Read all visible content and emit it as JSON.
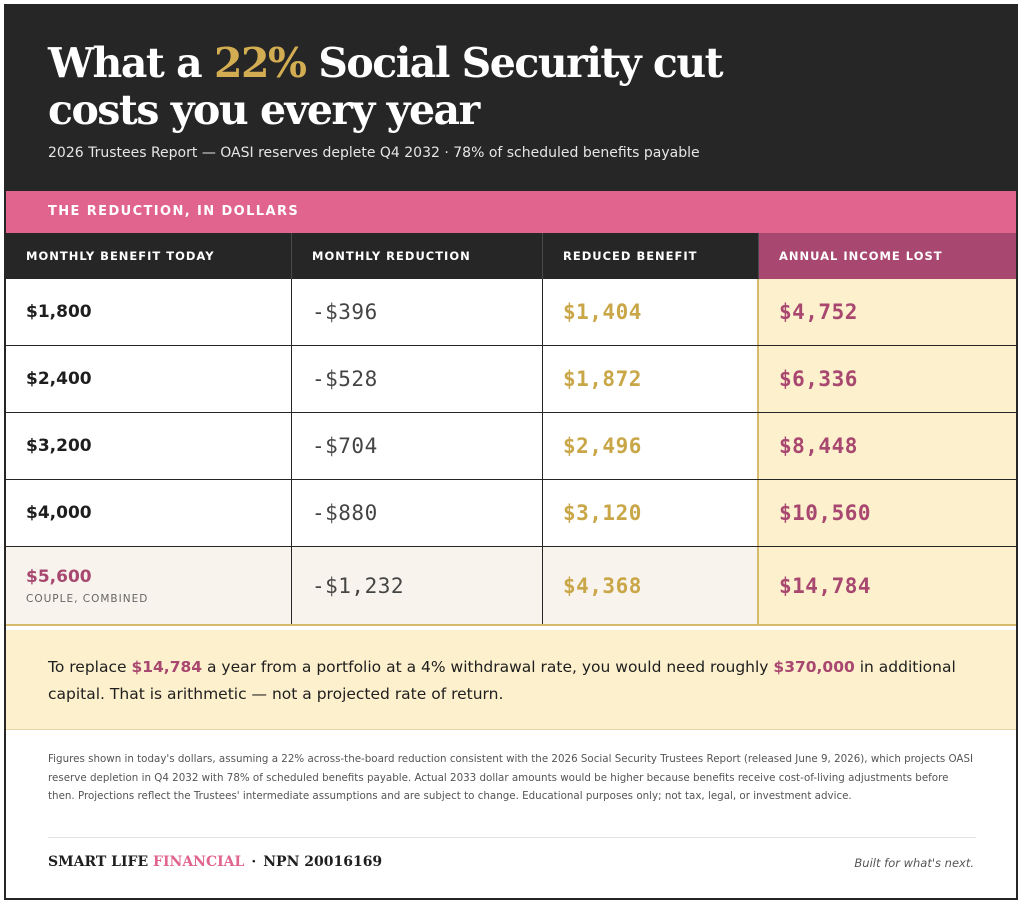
{
  "header": {
    "title_prefix": "What a ",
    "title_accent": "22%",
    "title_suffix": " Social Security cut costs you every year",
    "subtitle": "2026 Trustees Report — OASI reserves deplete Q4 2032 · 78% of scheduled benefits payable"
  },
  "band_label": "THE REDUCTION, IN DOLLARS",
  "table": {
    "columns": [
      "MONTHLY BENEFIT TODAY",
      "MONTHLY REDUCTION",
      "REDUCED BENEFIT",
      "ANNUAL INCOME LOST"
    ],
    "rows": [
      {
        "benefit": "$1,800",
        "reduction": "-$396",
        "reduced": "$1,404",
        "annual_lost": "$4,752"
      },
      {
        "benefit": "$2,400",
        "reduction": "-$528",
        "reduced": "$1,872",
        "annual_lost": "$6,336"
      },
      {
        "benefit": "$3,200",
        "reduction": "-$704",
        "reduced": "$2,496",
        "annual_lost": "$8,448"
      },
      {
        "benefit": "$4,000",
        "reduction": "-$880",
        "reduced": "$3,120",
        "annual_lost": "$10,560"
      },
      {
        "benefit": "$5,600",
        "note": "COUPLE, COMBINED",
        "reduction": "-$1,232",
        "reduced": "$4,368",
        "annual_lost": "$14,784"
      }
    ]
  },
  "callout": {
    "part1": "To replace ",
    "amount": "$14,784",
    "part2": " a year from a portfolio at a 4% withdrawal rate, you would need roughly ",
    "capital": "$370,000",
    "part3": " in additional capital. That is arithmetic — not a projected rate of return."
  },
  "footnote": "Figures shown in today's dollars, assuming a 22% across-the-board reduction consistent with the 2026 Social Security Trustees Report (released June 9, 2026), which projects OASI reserve depletion in Q4 2032 with 78% of scheduled benefits payable. Actual 2033 dollar amounts would be higher because benefits receive cost-of-living adjustments before then. Projections reflect the Trustees' intermediate assumptions and are subject to change. Educational purposes only; not tax, legal, or investment advice.",
  "footer": {
    "brand_main": "SMART LIFE",
    "brand_accent": "FINANCIAL",
    "separator": "·",
    "npn": "NPN 20016169",
    "tagline": "Built for what's next."
  },
  "colors": {
    "dark": "#262626",
    "pink": "#e0648d",
    "plum": "#a8476f",
    "gold": "#c9a748",
    "cream": "#fdf0cd"
  }
}
